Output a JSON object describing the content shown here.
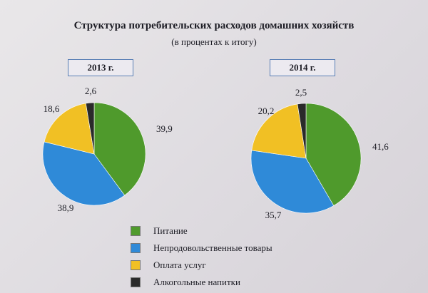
{
  "title": "Структура потребительских расходов домашних хозяйств",
  "subtitle": "(в процентах к итогу)",
  "colors": {
    "food": "#4f9a2c",
    "nonfood": "#2f8ad8",
    "services": "#f1c024",
    "alcohol": "#2a2a2a"
  },
  "chart_data": [
    {
      "type": "pie",
      "title": "2013 г.",
      "categories": [
        "Питание",
        "Непродовольственные товары",
        "Оплата услуг",
        "Алкогольные напитки"
      ],
      "values": [
        39.9,
        38.9,
        18.6,
        2.6
      ],
      "labels": [
        "39,9",
        "38,9",
        "18,6",
        "2,6"
      ]
    },
    {
      "type": "pie",
      "title": "2014 г.",
      "categories": [
        "Питание",
        "Непродовольственные товары",
        "Оплата услуг",
        "Алкогольные напитки"
      ],
      "values": [
        41.6,
        35.7,
        20.2,
        2.5
      ],
      "labels": [
        "41,6",
        "35,7",
        "20,2",
        "2,5"
      ]
    }
  ],
  "legend": {
    "placement": "bottom-center",
    "items": [
      {
        "label": "Питание",
        "color": "#4f9a2c"
      },
      {
        "label": "Непродовольственные товары",
        "color": "#2f8ad8"
      },
      {
        "label": "Оплата услуг",
        "color": "#f1c024"
      },
      {
        "label": "Алкогольные напитки",
        "color": "#2a2a2a"
      }
    ]
  }
}
